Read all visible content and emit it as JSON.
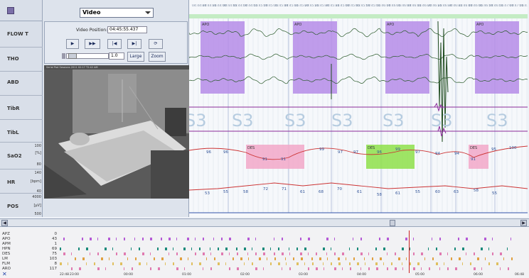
{
  "toolbar": {
    "video_select": "Video"
  },
  "channels": [
    {
      "label": "FLOW T"
    },
    {
      "label": "THO"
    },
    {
      "label": "ABD"
    },
    {
      "label": "TibR"
    },
    {
      "label": "TibL"
    },
    {
      "label": "SaO2"
    },
    {
      "label": "HR"
    },
    {
      "label": "POS"
    }
  ],
  "scales": {
    "sao2": [
      "100",
      "[%]",
      "80"
    ],
    "hr": [
      "140",
      "[bpm]",
      "40"
    ],
    "pos": [
      "4000",
      "[µV]",
      "500"
    ]
  },
  "video": {
    "position_label": "Video Position:",
    "position_value": "04:45:55.437",
    "play_glyph": "▶",
    "ff_glyph": "▶▶",
    "prev_glyph": "|◀",
    "next_glyph": "▶|",
    "sync_glyph": "⟳",
    "rate": "1.0",
    "large_label": "Large",
    "zoom_label": "Zoom",
    "stamp": "Serial Pod Sessions 2011 02:17 T2:42 AM"
  },
  "timeline_ticks": [
    "04:44:30",
    "04:44:35",
    "04:44:40",
    "04:44:45",
    "04:44:50",
    "04:44:55",
    "04:45:00",
    "04:45:05",
    "04:45:10",
    "04:45:15",
    "04:45:20",
    "04:45:25",
    "04:45:30",
    "04:45:35",
    "04:45:40",
    "04:45:45",
    "04:45:50",
    "04:45:55",
    "04:46:00",
    "04:46:05",
    "04:46:10",
    "04:46:15",
    "04:46:20",
    "04:46:25",
    "04:46:30",
    "04:46:35",
    "04:46:40",
    "04:46:45",
    "04:46:50",
    "04:46:55",
    "04:47:00",
    "04:47:05",
    "04:47:10"
  ],
  "apo_events": [
    {
      "label": "APO"
    },
    {
      "label": "APO"
    },
    {
      "label": "APO"
    },
    {
      "label": "APO"
    }
  ],
  "sleep_stage_labels": [
    "S3",
    "S3",
    "S3",
    "S3",
    "S3",
    "S3",
    "S3"
  ],
  "sao2_values": [
    "96",
    "96",
    "91",
    "91",
    "99",
    "97",
    "97",
    "96",
    "99",
    "97",
    "94",
    "94",
    "91",
    "95",
    "100"
  ],
  "des_labels": [
    "DES",
    "DES",
    "DES"
  ],
  "hr_values": [
    "53",
    "55",
    "58",
    "72",
    "71",
    "61",
    "68",
    "70",
    "61",
    "58",
    "61",
    "55",
    "60",
    "63",
    "58",
    "55"
  ],
  "event_list": {
    "rows": [
      {
        "name": "APZ",
        "count": "0"
      },
      {
        "name": "APO",
        "count": "43"
      },
      {
        "name": "APM",
        "count": "1"
      },
      {
        "name": "HPN",
        "count": "69"
      },
      {
        "name": "DES",
        "count": "75"
      },
      {
        "name": "LM",
        "count": "103"
      },
      {
        "name": "FLM",
        "count": "8"
      },
      {
        "name": "ARO",
        "count": "117"
      }
    ],
    "axis_ticks": [
      "22:48",
      "23:00",
      "00:00",
      "01:00",
      "02:00",
      "03:00",
      "04:00",
      "05:00",
      "06:00",
      "06:48"
    ],
    "close_glyph": "✕"
  },
  "colors": {
    "apo": "#b58ce8",
    "des": "#f2a8c8",
    "des_green": "#8ee04a",
    "wave": "#2a5a2a",
    "tib": "#8a2a9a",
    "sao2": "#cc3333",
    "hr": "#cc3333"
  }
}
